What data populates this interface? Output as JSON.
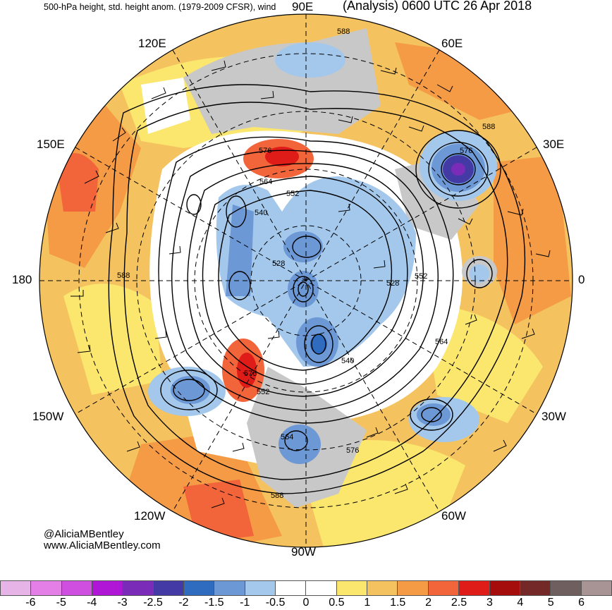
{
  "header": {
    "left_title": "500-hPa height, std. height anom. (1979-2009 CFSR), wind",
    "right_title": "(Analysis) 0600 UTC 26 Apr 2018"
  },
  "longitude_labels": {
    "lon_90e": "90E",
    "lon_120e": "120E",
    "lon_60e": "60E",
    "lon_150e": "150E",
    "lon_30e": "30E",
    "lon_180": "180",
    "lon_0": "0",
    "lon_150w": "150W",
    "lon_30w": "30W",
    "lon_120w": "120W",
    "lon_60w": "60W",
    "lon_90w": "90W"
  },
  "contour_labels": {
    "c588_top": "588",
    "c588_right": "588",
    "c576_ne": "576",
    "c576_n": "576",
    "c564_n": "564",
    "c552_n": "552",
    "c540_nw": "540",
    "c528_w": "528",
    "c528_e": "528",
    "c552_e": "552",
    "c564_e": "564",
    "c540_s": "540",
    "c576_sw": "576",
    "c552_sw": "552",
    "c564_s": "564",
    "c576_s": "576",
    "c588_bottom": "588",
    "c588_left": "588"
  },
  "credit": {
    "handle": "@AliciaMBentley",
    "website": "www.AliciaMBentley.com"
  },
  "colorbar": {
    "colors": [
      "#e6b4e6",
      "#e37fe7",
      "#cf4fe0",
      "#b016d6",
      "#7a2cb8",
      "#443aa6",
      "#2f6bbf",
      "#6d98d6",
      "#a4c8eb",
      "#ffffff",
      "#ffffff",
      "#fbe66e",
      "#f4c35f",
      "#f59a45",
      "#f2643a",
      "#e01c18",
      "#a50d0d",
      "#742828",
      "#705f5f",
      "#a89494"
    ],
    "tick_labels": [
      "-6",
      "-5",
      "-4",
      "-3",
      "-2.5",
      "-2",
      "-1.5",
      "-1",
      "-0.5",
      "0",
      "0.5",
      "1",
      "1.5",
      "2",
      "2.5",
      "3",
      "4",
      "5",
      "6"
    ]
  },
  "map_colors": {
    "positive_1": "#fbe66e",
    "positive_2": "#f4c35f",
    "positive_3": "#f59a45",
    "positive_4": "#f2643a",
    "positive_5": "#e01c18",
    "negative_1": "#a4c8eb",
    "negative_2": "#6d98d6",
    "negative_3": "#2f6bbf",
    "negative_4": "#443aa6",
    "negative_5": "#7a2cb8",
    "land_gray": "#c8c8c8"
  }
}
